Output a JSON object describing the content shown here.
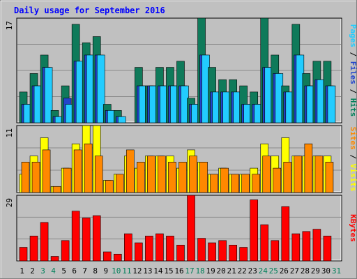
{
  "chart_data": {
    "type": "bar",
    "title": "Daily usage for September 2016",
    "categories": [
      "1",
      "2",
      "3",
      "4",
      "5",
      "6",
      "7",
      "8",
      "9",
      "10",
      "11",
      "12",
      "13",
      "14",
      "15",
      "16",
      "17",
      "18",
      "19",
      "20",
      "21",
      "22",
      "23",
      "24",
      "25",
      "26",
      "27",
      "28",
      "29",
      "30",
      "31"
    ],
    "weekend_days": [
      "3",
      "4",
      "10",
      "11",
      "17",
      "18",
      "24",
      "25",
      "31"
    ],
    "panels": [
      {
        "id": "hits",
        "ymax_label": "17",
        "ymax": 17,
        "grid": true,
        "right_label_parts": [
          "Pages",
          " / ",
          "Files",
          " / ",
          "Hits"
        ],
        "series": [
          {
            "name": "Hits",
            "color": "#0f7a5a",
            "values": [
              5,
              8,
              11,
              2,
              6,
              16,
              13,
              14,
              3,
              2,
              0,
              9,
              6,
              9,
              9,
              10,
              4,
              17,
              9,
              7,
              7,
              6,
              5,
              17,
              11,
              6,
              16,
              8,
              10,
              10,
              0
            ]
          },
          {
            "name": "Files",
            "color": "#2244cc",
            "values": [
              3,
              6,
              9,
              1,
              4,
              10,
              11,
              11,
              2,
              1,
              0,
              6,
              6,
              6,
              6,
              6,
              3,
              11,
              5,
              5,
              5,
              3,
              3,
              9,
              8,
              5,
              11,
              6,
              7,
              6,
              0
            ]
          },
          {
            "name": "Pages",
            "color": "#22ccff",
            "values": [
              3,
              6,
              9,
              1,
              3,
              10,
              11,
              11,
              2,
              1,
              0,
              6,
              6,
              6,
              6,
              6,
              3,
              11,
              5,
              5,
              5,
              3,
              3,
              9,
              8,
              5,
              11,
              6,
              7,
              6,
              0
            ]
          }
        ]
      },
      {
        "id": "visits",
        "ymax_label": "11",
        "ymax": 11,
        "grid": true,
        "right_label_parts": [
          "Sites",
          " / ",
          "Visits"
        ],
        "series": [
          {
            "name": "Visits",
            "color": "#ffff00",
            "values": [
              3,
              6,
              9,
              1,
              4,
              8,
              11,
              11,
              2,
              3,
              6,
              4,
              6,
              6,
              6,
              4,
              7,
              5,
              3,
              4,
              3,
              3,
              4,
              8,
              6,
              9,
              6,
              6,
              6,
              6,
              0
            ]
          },
          {
            "name": "Sites",
            "color": "#ff8800",
            "values": [
              5,
              5,
              7,
              1,
              4,
              7,
              8,
              6,
              2,
              3,
              7,
              5,
              6,
              6,
              5,
              5,
              6,
              5,
              3,
              4,
              3,
              3,
              3,
              6,
              4,
              5,
              6,
              8,
              6,
              5,
              0
            ]
          }
        ]
      },
      {
        "id": "kbytes",
        "ymax_label": "29",
        "ymax": 29,
        "grid": true,
        "right_label_parts": [
          "KBytes"
        ],
        "series": [
          {
            "name": "KBytes",
            "color": "#ff0000",
            "values": [
              6,
              11,
              17,
              2,
              9,
              22,
              19,
              20,
              4,
              3,
              12,
              8,
              11,
              12,
              11,
              7,
              29,
              10,
              8,
              9,
              7,
              6,
              27,
              16,
              9,
              24,
              12,
              13,
              14,
              11,
              0
            ]
          }
        ]
      }
    ]
  },
  "colors": {
    "background": "#c0c0c0",
    "title": "#0000ff",
    "weekday_label": "#000000",
    "weekend_label": "#00805a",
    "pages_label": "#22ccff",
    "files_label": "#2244cc",
    "hits_label": "#00805a",
    "sites_label": "#ff8800",
    "visits_label": "#ffff00",
    "kbytes_label": "#ff0000",
    "separator": "#000000"
  }
}
